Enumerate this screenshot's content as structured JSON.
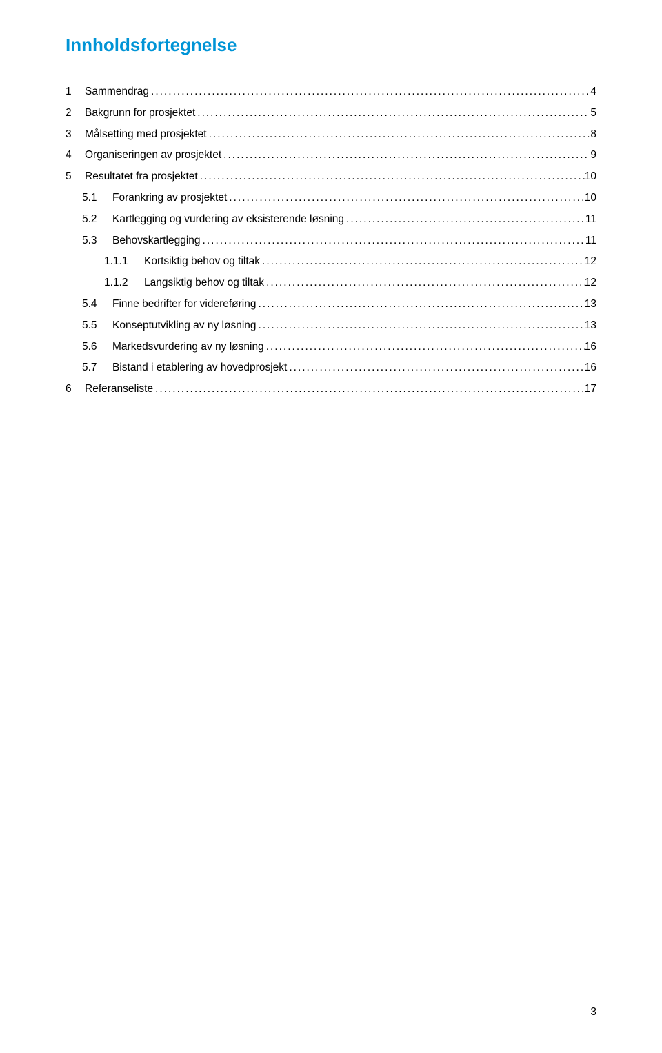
{
  "title": "Innholdsfortegnelse",
  "title_color": "#0094d6",
  "body_color": "#000000",
  "background_color": "#ffffff",
  "toc": [
    {
      "level": 0,
      "num": "1",
      "text": "Sammendrag",
      "page": "4"
    },
    {
      "level": 0,
      "num": "2",
      "text": "Bakgrunn for prosjektet",
      "page": "5"
    },
    {
      "level": 0,
      "num": "3",
      "text": "Målsetting med prosjektet",
      "page": "8"
    },
    {
      "level": 0,
      "num": "4",
      "text": "Organiseringen av prosjektet",
      "page": "9"
    },
    {
      "level": 0,
      "num": "5",
      "text": "Resultatet fra prosjektet",
      "page": "10"
    },
    {
      "level": 1,
      "num": "5.1",
      "text": "Forankring av prosjektet",
      "page": "10"
    },
    {
      "level": 1,
      "num": "5.2",
      "text": "Kartlegging og vurdering av eksisterende løsning",
      "page": "11"
    },
    {
      "level": 1,
      "num": "5.3",
      "text": "Behovskartlegging",
      "page": "11"
    },
    {
      "level": 2,
      "num": "1.1.1",
      "text": "Kortsiktig behov og tiltak",
      "page": "12"
    },
    {
      "level": 2,
      "num": "1.1.2",
      "text": "Langsiktig behov og tiltak",
      "page": "12"
    },
    {
      "level": 1,
      "num": "5.4",
      "text": "Finne bedrifter for videreføring",
      "page": "13"
    },
    {
      "level": 1,
      "num": "5.5",
      "text": "Konseptutvikling av ny løsning",
      "page": "13"
    },
    {
      "level": 1,
      "num": "5.6",
      "text": "Markedsvurdering av ny løsning",
      "page": "16"
    },
    {
      "level": 1,
      "num": "5.7",
      "text": "Bistand i etablering av hovedprosjekt",
      "page": "16"
    },
    {
      "level": 0,
      "num": "6",
      "text": "Referanseliste",
      "page": "17"
    }
  ],
  "footer_page_number": "3"
}
